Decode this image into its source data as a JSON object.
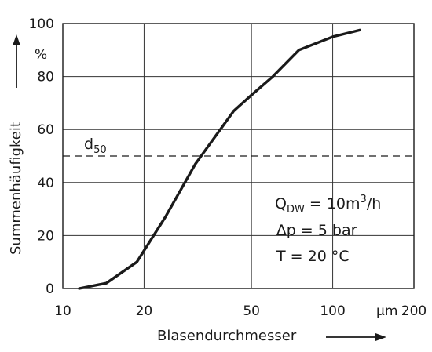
{
  "chart_data": {
    "type": "line",
    "x_scale": "log",
    "xlim": [
      10,
      200
    ],
    "ylim": [
      0,
      100
    ],
    "x_ticks": [
      10,
      20,
      50,
      100,
      200
    ],
    "x_tick_labels": [
      "10",
      "20",
      "50",
      "100",
      "200"
    ],
    "x_unit": "µm",
    "y_ticks": [
      0,
      20,
      40,
      60,
      80,
      100
    ],
    "y_tick_labels": [
      "0",
      "20",
      "40",
      "60",
      "80",
      "100"
    ],
    "y_unit": "%",
    "xlabel": "Blasendurchmesser",
    "ylabel": "Summenhäufigkeit",
    "grid": true,
    "series": [
      {
        "x": [
          11.5,
          14.5,
          18.8,
          24.0,
          31.0,
          43.0,
          50.0,
          60.0,
          75.0,
          100.0,
          126.0
        ],
        "y": [
          0,
          2,
          10,
          27,
          47,
          67,
          73,
          80,
          90,
          95,
          97.5
        ]
      }
    ],
    "reference_line": {
      "label": "d",
      "label_sub": "50",
      "y": 50,
      "style": "dashed"
    },
    "annotations": {
      "line1": {
        "main": "Q",
        "sub": "DW",
        "rest": " = 10m",
        "sup": "3",
        "tail": "/h"
      },
      "line2": "∆p = 5 bar",
      "line3": "T = 20 °C"
    }
  }
}
